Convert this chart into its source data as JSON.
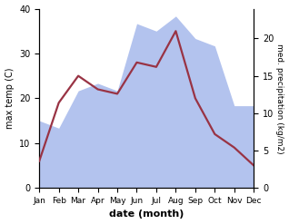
{
  "months": [
    "Jan",
    "Feb",
    "Mar",
    "Apr",
    "May",
    "Jun",
    "Jul",
    "Aug",
    "Sep",
    "Oct",
    "Nov",
    "Dec"
  ],
  "temperature": [
    6,
    19,
    25,
    22,
    21,
    28,
    27,
    35,
    20,
    12,
    9,
    5
  ],
  "precipitation": [
    9,
    8,
    13,
    14,
    13,
    22,
    21,
    23,
    20,
    19,
    11,
    11
  ],
  "temp_color": "#993344",
  "precip_color": "#b3c3ee",
  "temp_ylim": [
    0,
    40
  ],
  "precip_ylim": [
    0,
    24
  ],
  "precip_yticks": [
    0,
    5,
    10,
    15,
    20
  ],
  "temp_yticks": [
    0,
    10,
    20,
    30,
    40
  ],
  "ylabel_left": "max temp (C)",
  "ylabel_right": "med. precipitation (kg/m2)",
  "xlabel": "date (month)",
  "bg_color": "#ffffff",
  "temp_linewidth": 1.6
}
